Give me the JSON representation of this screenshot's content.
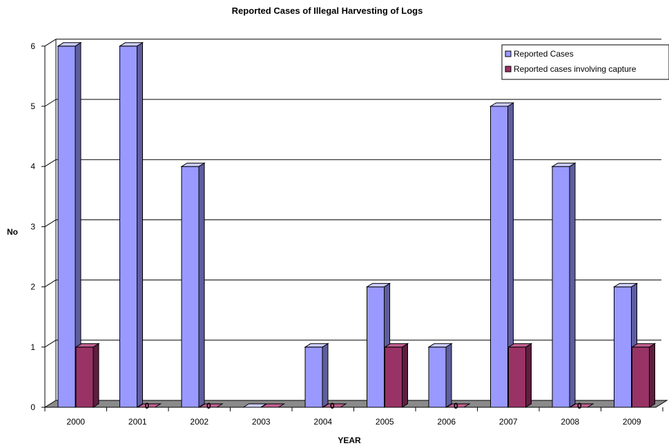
{
  "chart_data": {
    "type": "bar",
    "title": "Reported Cases of Illegal Harvesting of Logs",
    "xlabel": "YEAR",
    "ylabel": "No",
    "categories": [
      "2000",
      "2001",
      "2002",
      "2003",
      "2004",
      "2005",
      "2006",
      "2007",
      "2008",
      "2009"
    ],
    "series": [
      {
        "name": "Reported Cases",
        "values": [
          6,
          6,
          4,
          0,
          1,
          2,
          1,
          5,
          4,
          2
        ]
      },
      {
        "name": "Reported cases involving capture",
        "values": [
          1,
          0,
          0,
          0,
          0,
          1,
          0,
          1,
          0,
          1
        ]
      }
    ],
    "zero_value_labels": [
      "0",
      "0",
      "0",
      "0",
      "0",
      "0"
    ],
    "yticks": [
      0,
      1,
      2,
      3,
      4,
      5,
      6
    ],
    "ylim": [
      0,
      6
    ],
    "grid": true,
    "legend_position": "top-right",
    "style": "3d-clustered-column",
    "colors": {
      "series1_front": "#9999ff",
      "series1_side": "#5e5e9e",
      "series1_top": "#ccccff",
      "series2_front": "#993366",
      "series2_side": "#5e1f3f",
      "series2_top": "#c0608f",
      "floor": "#8a8a8a",
      "grid": "#000000"
    }
  }
}
